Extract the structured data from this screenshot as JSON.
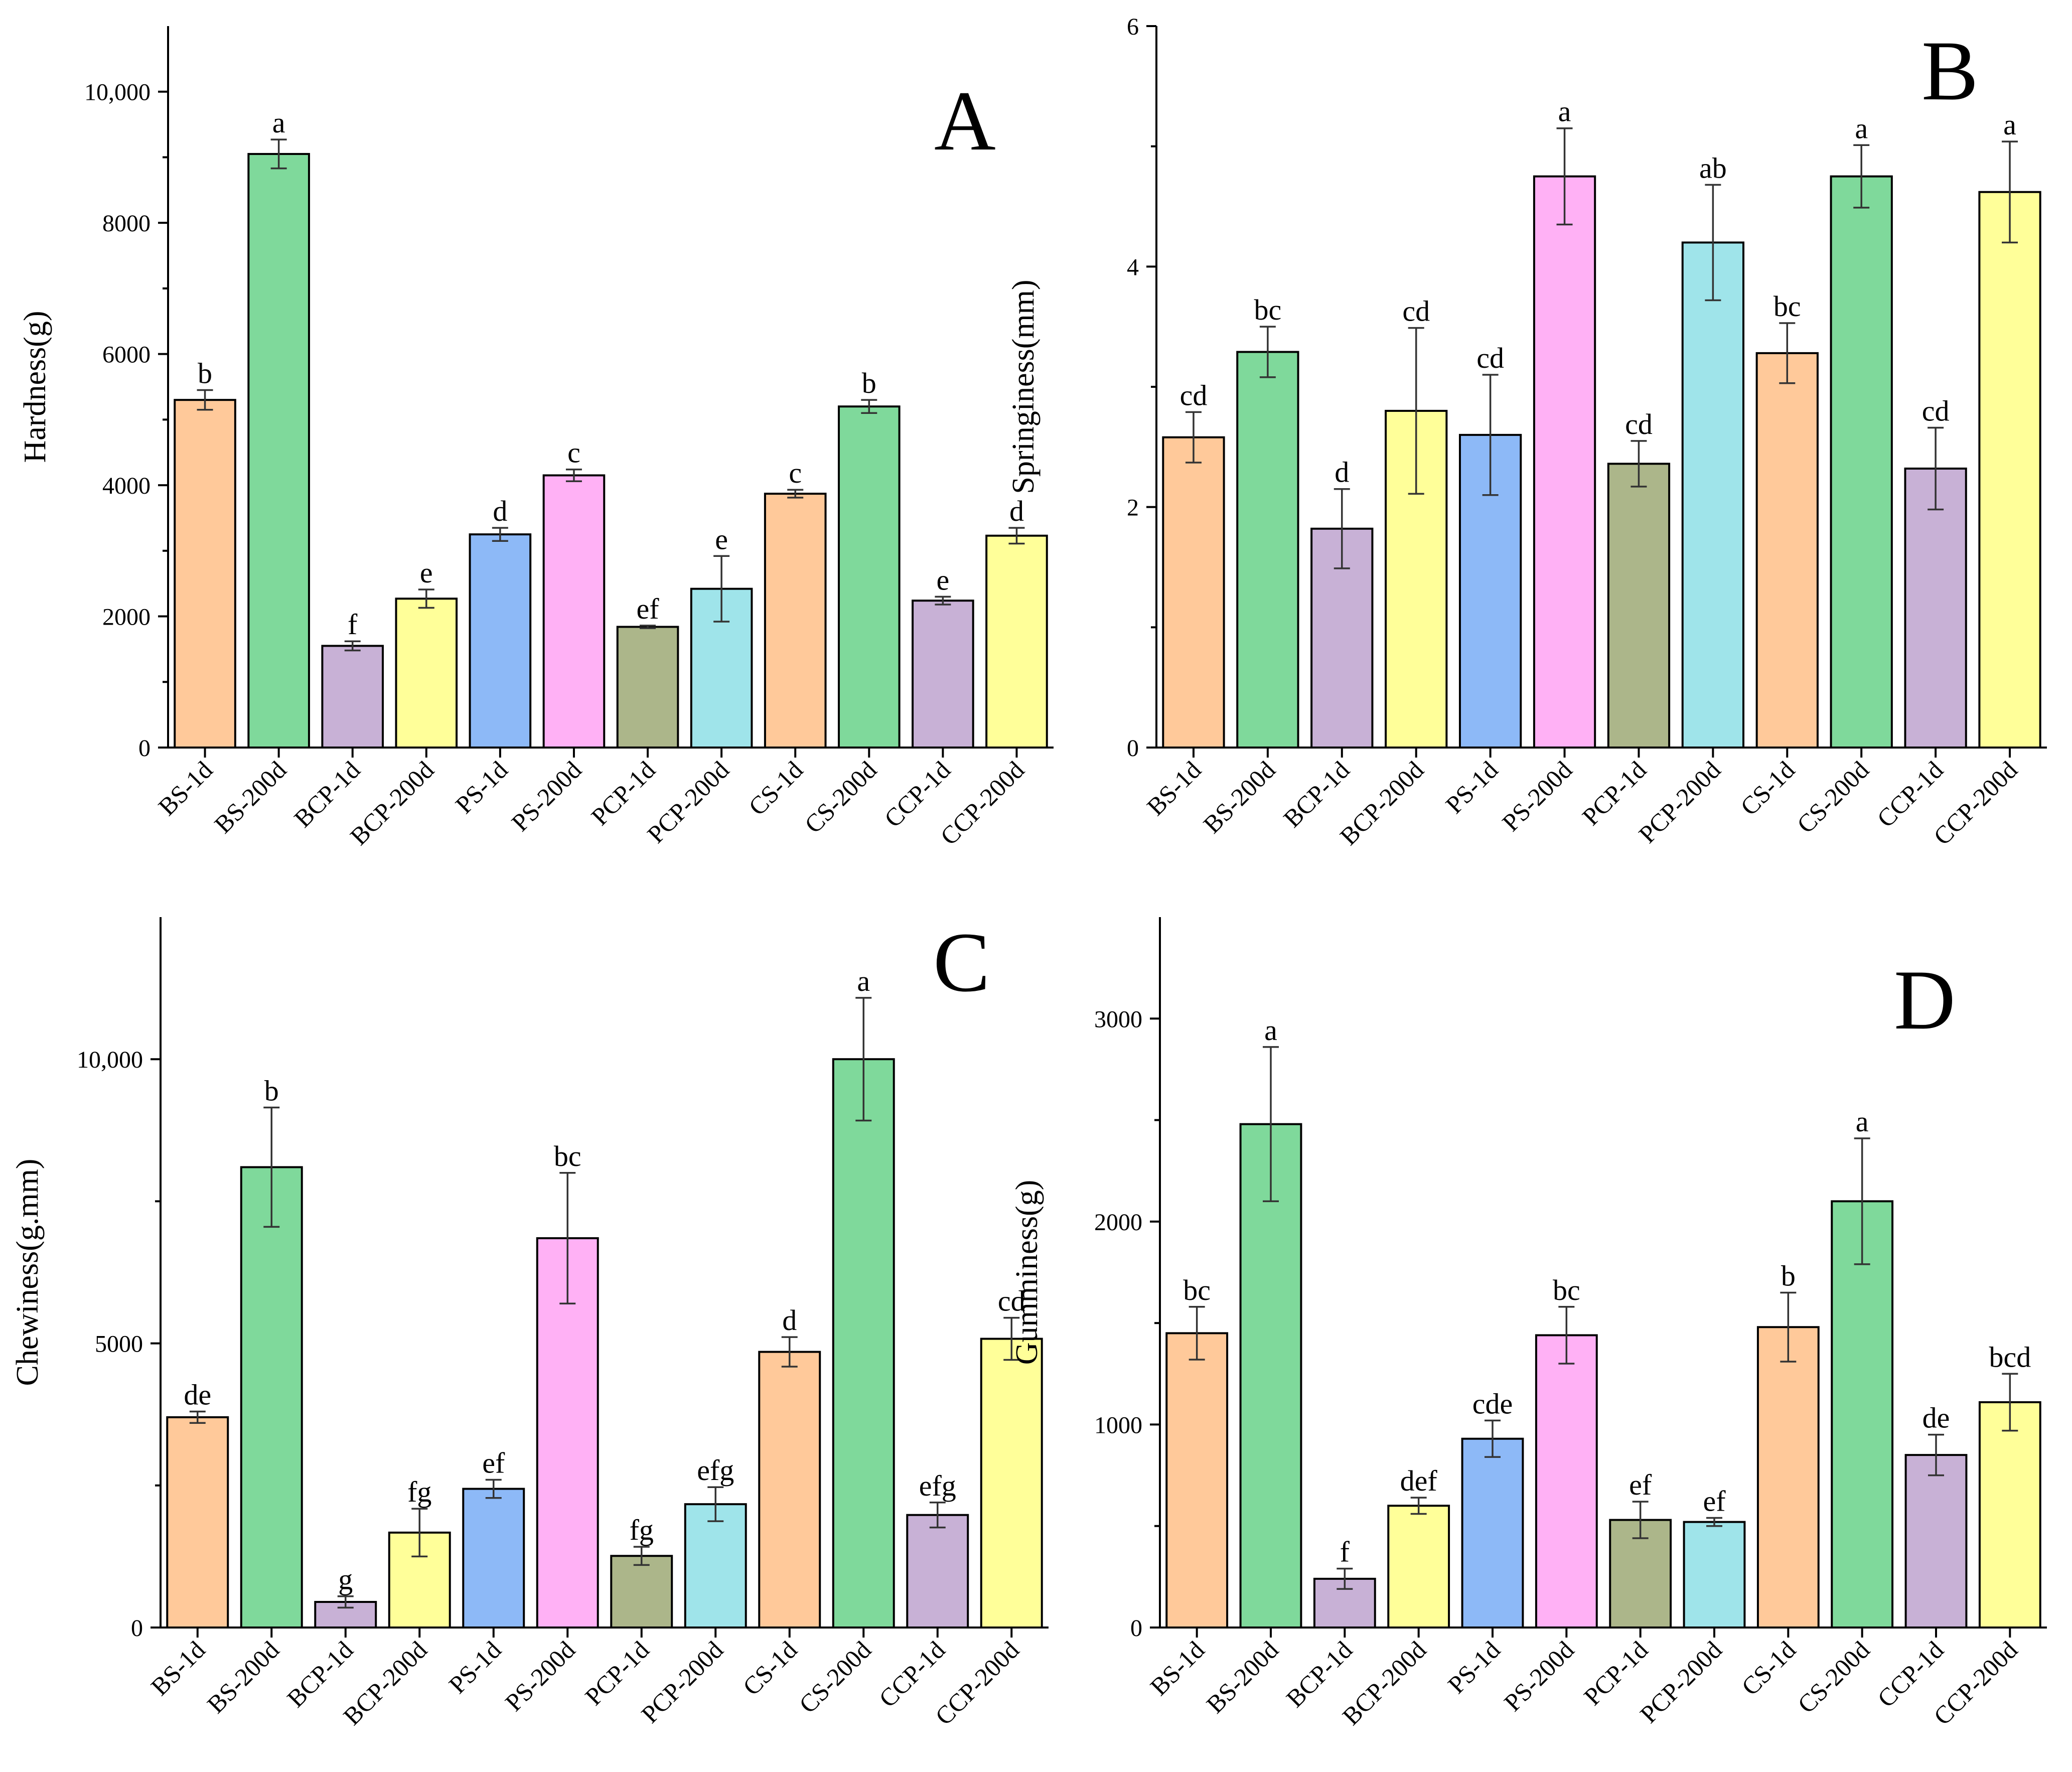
{
  "colors": [
    "#FFC99A",
    "#7FD99B",
    "#C8B1D6",
    "#FFFF99",
    "#8DB9F7",
    "#FFB1F5",
    "#ACB68A",
    "#9FE4EA",
    "#FFC99A",
    "#7FD99B",
    "#C8B1D6",
    "#FFFF99"
  ],
  "chart_data": [
    {
      "type": "bar",
      "panel": "A",
      "ylabel": "Hardness(g)",
      "ylim": [
        0,
        11000
      ],
      "yticks": [
        0,
        2000,
        4000,
        6000,
        8000,
        10000
      ],
      "ytick_labels": [
        "0",
        "2000",
        "4000",
        "6000",
        "8000",
        "10,000"
      ],
      "categories": [
        "BS-1d",
        "BS-200d",
        "BCP-1d",
        "BCP-200d",
        "PS-1d",
        "PS-200d",
        "PCP-1d",
        "PCP-200d",
        "CS-1d",
        "CS-200d",
        "CCP-1d",
        "CCP-200d"
      ],
      "values": [
        5300,
        9050,
        1550,
        2270,
        3250,
        4150,
        1840,
        2420,
        3870,
        5200,
        2240,
        3230
      ],
      "errors": [
        150,
        220,
        70,
        140,
        100,
        90,
        20,
        500,
        60,
        100,
        60,
        120
      ],
      "letters": [
        "b",
        "a",
        "f",
        "e",
        "d",
        "c",
        "ef",
        "e",
        "c",
        "b",
        "e",
        "d"
      ]
    },
    {
      "type": "bar",
      "panel": "B",
      "ylabel": "Springiness(mm)",
      "ylim": [
        0,
        6
      ],
      "yticks": [
        0,
        2,
        4,
        6
      ],
      "ytick_labels": [
        "0",
        "2",
        "4",
        "6"
      ],
      "categories": [
        "BS-1d",
        "BS-200d",
        "BCP-1d",
        "BCP-200d",
        "PS-1d",
        "PS-200d",
        "PCP-1d",
        "PCP-200d",
        "CS-1d",
        "CS-200d",
        "CCP-1d",
        "CCP-200d"
      ],
      "values": [
        2.58,
        3.29,
        1.82,
        2.8,
        2.6,
        4.75,
        2.36,
        4.2,
        3.28,
        4.75,
        2.32,
        4.62
      ],
      "errors": [
        0.21,
        0.21,
        0.33,
        0.69,
        0.5,
        0.4,
        0.19,
        0.48,
        0.25,
        0.26,
        0.34,
        0.42
      ],
      "letters": [
        "cd",
        "bc",
        "d",
        "cd",
        "cd",
        "a",
        "cd",
        "ab",
        "bc",
        "a",
        "cd",
        "a"
      ]
    },
    {
      "type": "bar",
      "panel": "C",
      "ylabel": "Chewiness(g.mm)",
      "ylim": [
        0,
        12500
      ],
      "yticks": [
        0,
        5000,
        10000
      ],
      "ytick_labels": [
        "0",
        "5000",
        "10,000"
      ],
      "categories": [
        "BS-1d",
        "BS-200d",
        "BCP-1d",
        "BCP-200d",
        "PS-1d",
        "PS-200d",
        "PCP-1d",
        "PCP-200d",
        "CS-1d",
        "CS-200d",
        "CCP-1d",
        "CCP-200d"
      ],
      "values": [
        3700,
        8100,
        450,
        1670,
        2440,
        6850,
        1260,
        2170,
        4850,
        10000,
        1980,
        5080
      ],
      "errors": [
        100,
        1050,
        100,
        420,
        160,
        1150,
        160,
        300,
        260,
        1080,
        220,
        370
      ],
      "letters": [
        "de",
        "b",
        "g",
        "fg",
        "ef",
        "bc",
        "fg",
        "efg",
        "d",
        "a",
        "efg",
        "cd"
      ]
    },
    {
      "type": "bar",
      "panel": "D",
      "ylabel": "Gumminess(g)",
      "ylim": [
        0,
        3500
      ],
      "yticks": [
        0,
        1000,
        2000,
        3000
      ],
      "ytick_labels": [
        "0",
        "1000",
        "2000",
        "3000"
      ],
      "categories": [
        "BS-1d",
        "BS-200d",
        "BCP-1d",
        "BCP-200d",
        "PS-1d",
        "PS-200d",
        "PCP-1d",
        "PCP-200d",
        "CS-1d",
        "CS-200d",
        "CCP-1d",
        "CCP-200d"
      ],
      "values": [
        1450,
        2480,
        240,
        600,
        930,
        1440,
        530,
        520,
        1480,
        2100,
        850,
        1110
      ],
      "errors": [
        130,
        380,
        50,
        40,
        90,
        140,
        90,
        20,
        170,
        310,
        100,
        140
      ],
      "letters": [
        "bc",
        "a",
        "f",
        "def",
        "cde",
        "bc",
        "ef",
        "ef",
        "b",
        "a",
        "de",
        "bcd"
      ]
    }
  ]
}
